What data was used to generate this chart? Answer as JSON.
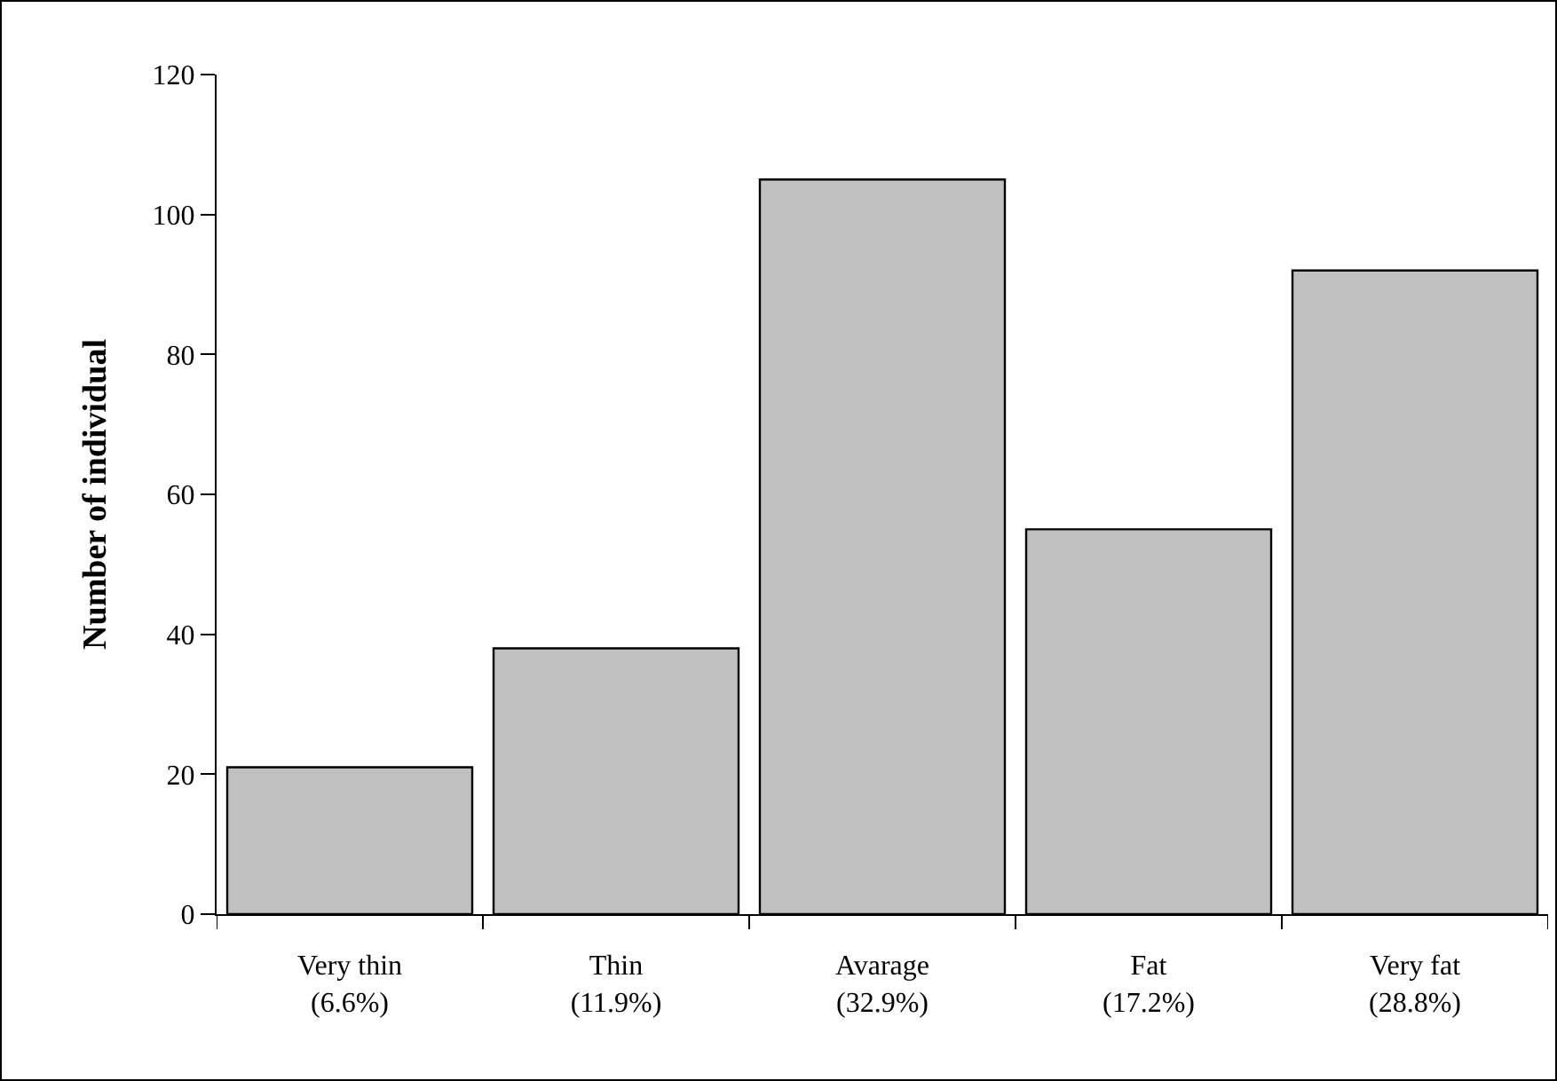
{
  "chart_data": {
    "type": "bar",
    "ylabel": "Number of individual",
    "categories": [
      "Very thin\n(6.6%)",
      "Thin\n(11.9%)",
      "Avarage\n(32.9%)",
      "Fat\n(17.2%)",
      "Very fat\n(28.8%)"
    ],
    "values": [
      21,
      38,
      105,
      55,
      92
    ],
    "color": "#c0c0c0",
    "ylim": [
      0,
      120
    ],
    "yticks": [
      0,
      20,
      40,
      60,
      80,
      100,
      120
    ],
    "grid": false
  }
}
